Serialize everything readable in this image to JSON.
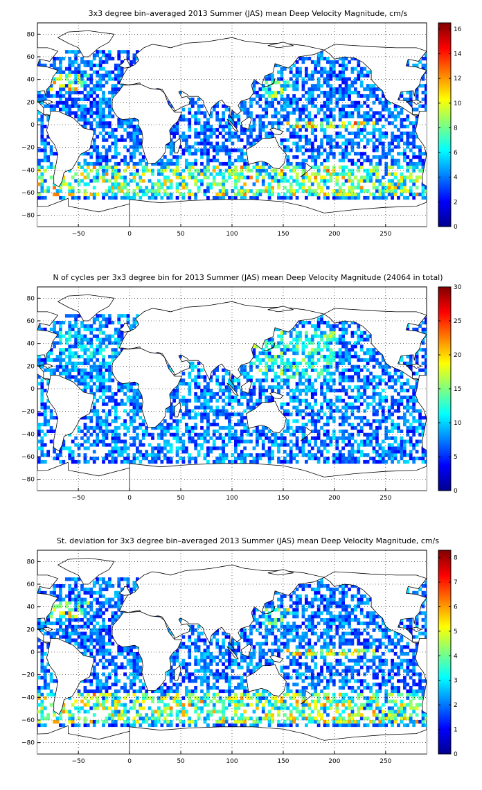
{
  "colors": {
    "land_fill": "#ffffff",
    "coast": "#000000",
    "grid": "#000000",
    "colormap": "jet"
  },
  "chart_data": [
    {
      "type": "heatmap",
      "title": "3x3 degree bin–averaged 2013 Summer (JAS) mean Deep Velocity Magnitude, cm/s",
      "xlabel": "",
      "ylabel": "",
      "xlim": [
        -90,
        290
      ],
      "ylim": [
        -90,
        90
      ],
      "xticks": [
        -50,
        0,
        50,
        100,
        150,
        200,
        250
      ],
      "yticks": [
        -80,
        -60,
        -40,
        -20,
        0,
        20,
        40,
        60,
        80
      ],
      "bin_size_deg": 3,
      "grid": true,
      "colorbar": {
        "min": 0,
        "max": 16.5,
        "ticks": [
          0,
          2,
          4,
          6,
          8,
          10,
          12,
          14,
          16
        ]
      },
      "pattern": "velocity"
    },
    {
      "type": "heatmap",
      "title": "N of cycles per 3x3 degree bin for 2013 Summer (JAS) mean Deep Velocity Magnitude (24064 in total)",
      "xlabel": "",
      "ylabel": "",
      "xlim": [
        -90,
        290
      ],
      "ylim": [
        -90,
        90
      ],
      "xticks": [
        -50,
        0,
        50,
        100,
        150,
        200,
        250
      ],
      "yticks": [
        -80,
        -60,
        -40,
        -20,
        0,
        20,
        40,
        60,
        80
      ],
      "bin_size_deg": 3,
      "grid": true,
      "colorbar": {
        "min": 0,
        "max": 30,
        "ticks": [
          0,
          5,
          10,
          15,
          20,
          25,
          30
        ]
      },
      "pattern": "count"
    },
    {
      "type": "heatmap",
      "title": "St. deviation for 3x3 degree bin–averaged 2013 Summer (JAS) mean Deep Velocity Magnitude, cm/s",
      "xlabel": "",
      "ylabel": "",
      "xlim": [
        -90,
        290
      ],
      "ylim": [
        -90,
        90
      ],
      "xticks": [
        -50,
        0,
        50,
        100,
        150,
        200,
        250
      ],
      "yticks": [
        -80,
        -60,
        -40,
        -20,
        0,
        20,
        40,
        60,
        80
      ],
      "bin_size_deg": 3,
      "grid": true,
      "colorbar": {
        "min": 0,
        "max": 8.3,
        "ticks": [
          0,
          1,
          2,
          3,
          4,
          5,
          6,
          7,
          8
        ]
      },
      "pattern": "stdev"
    }
  ]
}
